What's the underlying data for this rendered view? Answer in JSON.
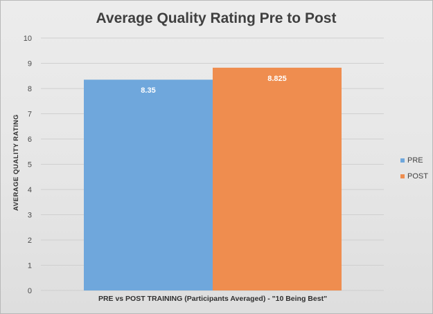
{
  "chart_data": {
    "type": "bar",
    "title": "Average Quality Rating Pre to Post",
    "xlabel": "PRE vs POST TRAINING (Participants Averaged)  -  \"10 Being Best\"",
    "ylabel": "AVERAGE QUALITY RATING",
    "ylim": [
      0,
      10
    ],
    "yticks": [
      "0",
      "1",
      "2",
      "3",
      "4",
      "5",
      "6",
      "7",
      "8",
      "9",
      "10"
    ],
    "grid": true,
    "legend_position": "right",
    "series": [
      {
        "name": "PRE",
        "values": [
          8.35
        ],
        "label": "8.35",
        "color": "#6fa7dc"
      },
      {
        "name": "POST",
        "values": [
          8.825
        ],
        "label": "8.825",
        "color": "#ef8d4f"
      }
    ]
  }
}
